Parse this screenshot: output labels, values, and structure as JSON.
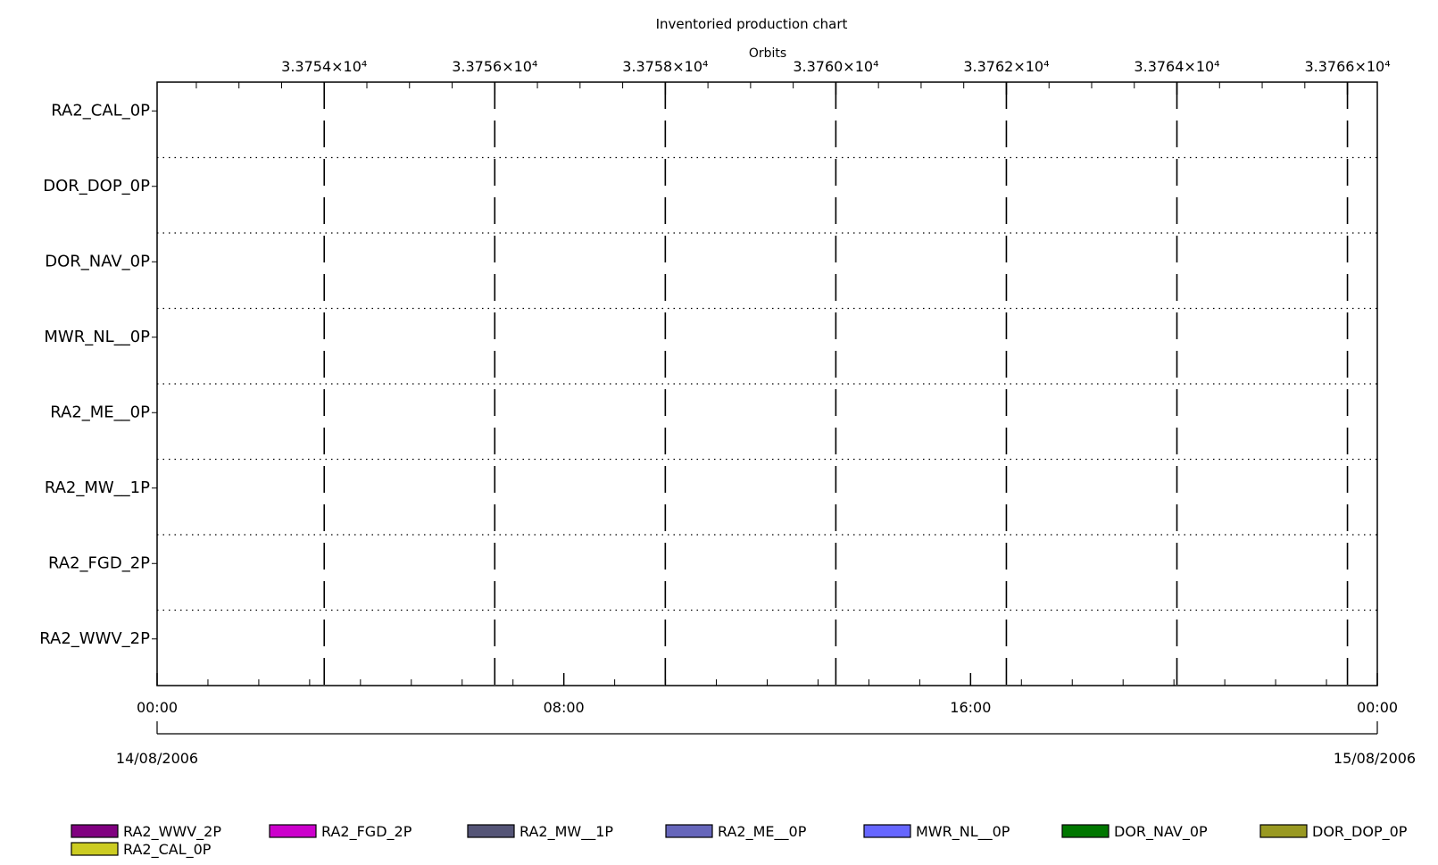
{
  "chart_data": {
    "type": "bar",
    "title": "Inventoried production chart",
    "top_axis_label": "Orbits",
    "top_ticks": [
      {
        "label": "3.3754×10⁴",
        "value": 33754
      },
      {
        "label": "3.3756×10⁴",
        "value": 33756
      },
      {
        "label": "3.3758×10⁴",
        "value": 33758
      },
      {
        "label": "3.3760×10⁴",
        "value": 33760
      },
      {
        "label": "3.3762×10⁴",
        "value": 33762
      },
      {
        "label": "3.3764×10⁴",
        "value": 33764
      },
      {
        "label": "3.3766×10⁴",
        "value": 33766
      }
    ],
    "top_range": [
      33752.04,
      33766.35
    ],
    "bottom_ticks": [
      {
        "label": "00:00",
        "hours": 0
      },
      {
        "label": "08:00",
        "hours": 8
      },
      {
        "label": "16:00",
        "hours": 16
      },
      {
        "label": "00:00",
        "hours": 24
      }
    ],
    "bottom_range_hours": [
      0,
      24
    ],
    "date_labels": {
      "start": "14/08/2006",
      "end": "15/08/2006"
    },
    "categories": [
      "RA2_CAL_0P",
      "DOR_DOP_0P",
      "DOR_NAV_0P",
      "MWR_NL__0P",
      "RA2_ME__0P",
      "RA2_MW__1P",
      "RA2_FGD_2P",
      "RA2_WWV_2P"
    ],
    "legend": [
      {
        "name": "RA2_WWV_2P",
        "color": "#800080"
      },
      {
        "name": "RA2_FGD_2P",
        "color": "#cc00cc"
      },
      {
        "name": "RA2_MW__1P",
        "color": "#555577"
      },
      {
        "name": "RA2_ME__0P",
        "color": "#6666bb"
      },
      {
        "name": "MWR_NL__0P",
        "color": "#6666ff"
      },
      {
        "name": "DOR_NAV_0P",
        "color": "#007700"
      },
      {
        "name": "DOR_DOP_0P",
        "color": "#999922"
      },
      {
        "name": "RA2_CAL_0P",
        "color": "#cccc22"
      }
    ],
    "series": [],
    "grid": true,
    "legend_position": "bottom"
  }
}
